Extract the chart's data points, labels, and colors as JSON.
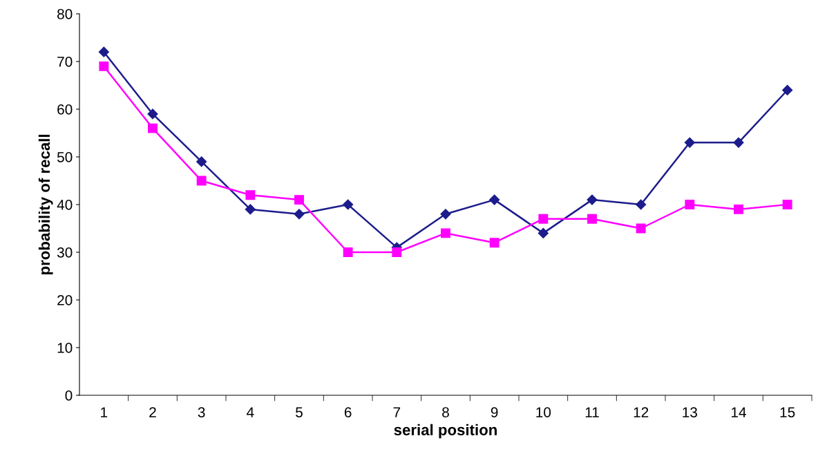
{
  "chart_data": {
    "type": "line",
    "xlabel": "serial position",
    "ylabel": "probability of recall",
    "categories": [
      "1",
      "2",
      "3",
      "4",
      "5",
      "6",
      "7",
      "8",
      "9",
      "10",
      "11",
      "12",
      "13",
      "14",
      "15"
    ],
    "series": [
      {
        "color": "#1c1c8c",
        "marker": "diamond",
        "values": [
          72,
          59,
          49,
          39,
          38,
          40,
          31,
          38,
          41,
          34,
          41,
          40,
          53,
          53,
          64
        ]
      },
      {
        "color": "#ff00ff",
        "marker": "square",
        "values": [
          69,
          56,
          45,
          42,
          41,
          30,
          30,
          34,
          32,
          37,
          37,
          35,
          40,
          39,
          40
        ]
      }
    ],
    "ylim": [
      0,
      80
    ],
    "yticks": [
      0,
      10,
      20,
      30,
      40,
      50,
      60,
      70,
      80
    ],
    "grid": false,
    "legend": false,
    "line_style": "solid"
  }
}
